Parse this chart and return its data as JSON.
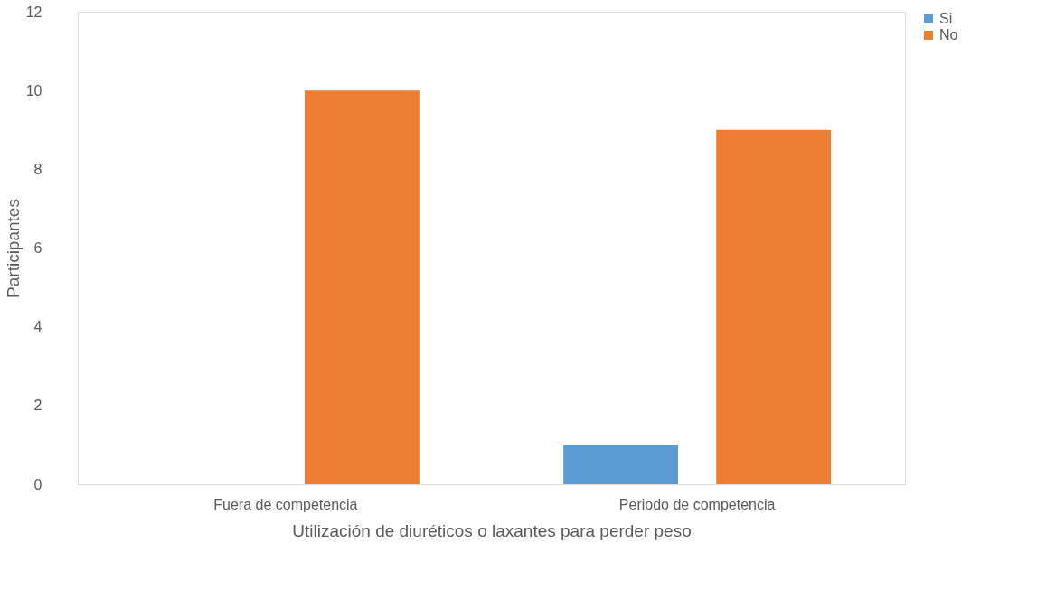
{
  "chart_data": {
    "type": "bar",
    "xlabel": "Utilización de diuréticos o laxantes para perder peso",
    "ylabel": "Participantes",
    "categories": [
      "Fuera de competencia",
      "Periodo de competencia"
    ],
    "series": [
      {
        "name": "Si",
        "color": "#5b9bd5",
        "values": [
          0,
          1
        ]
      },
      {
        "name": "No",
        "color": "#ed7d31",
        "values": [
          10,
          9
        ]
      }
    ],
    "ylim": [
      0,
      12
    ],
    "yticks": [
      0,
      2,
      4,
      6,
      8,
      10,
      12
    ],
    "grid": false,
    "legend": "right"
  }
}
